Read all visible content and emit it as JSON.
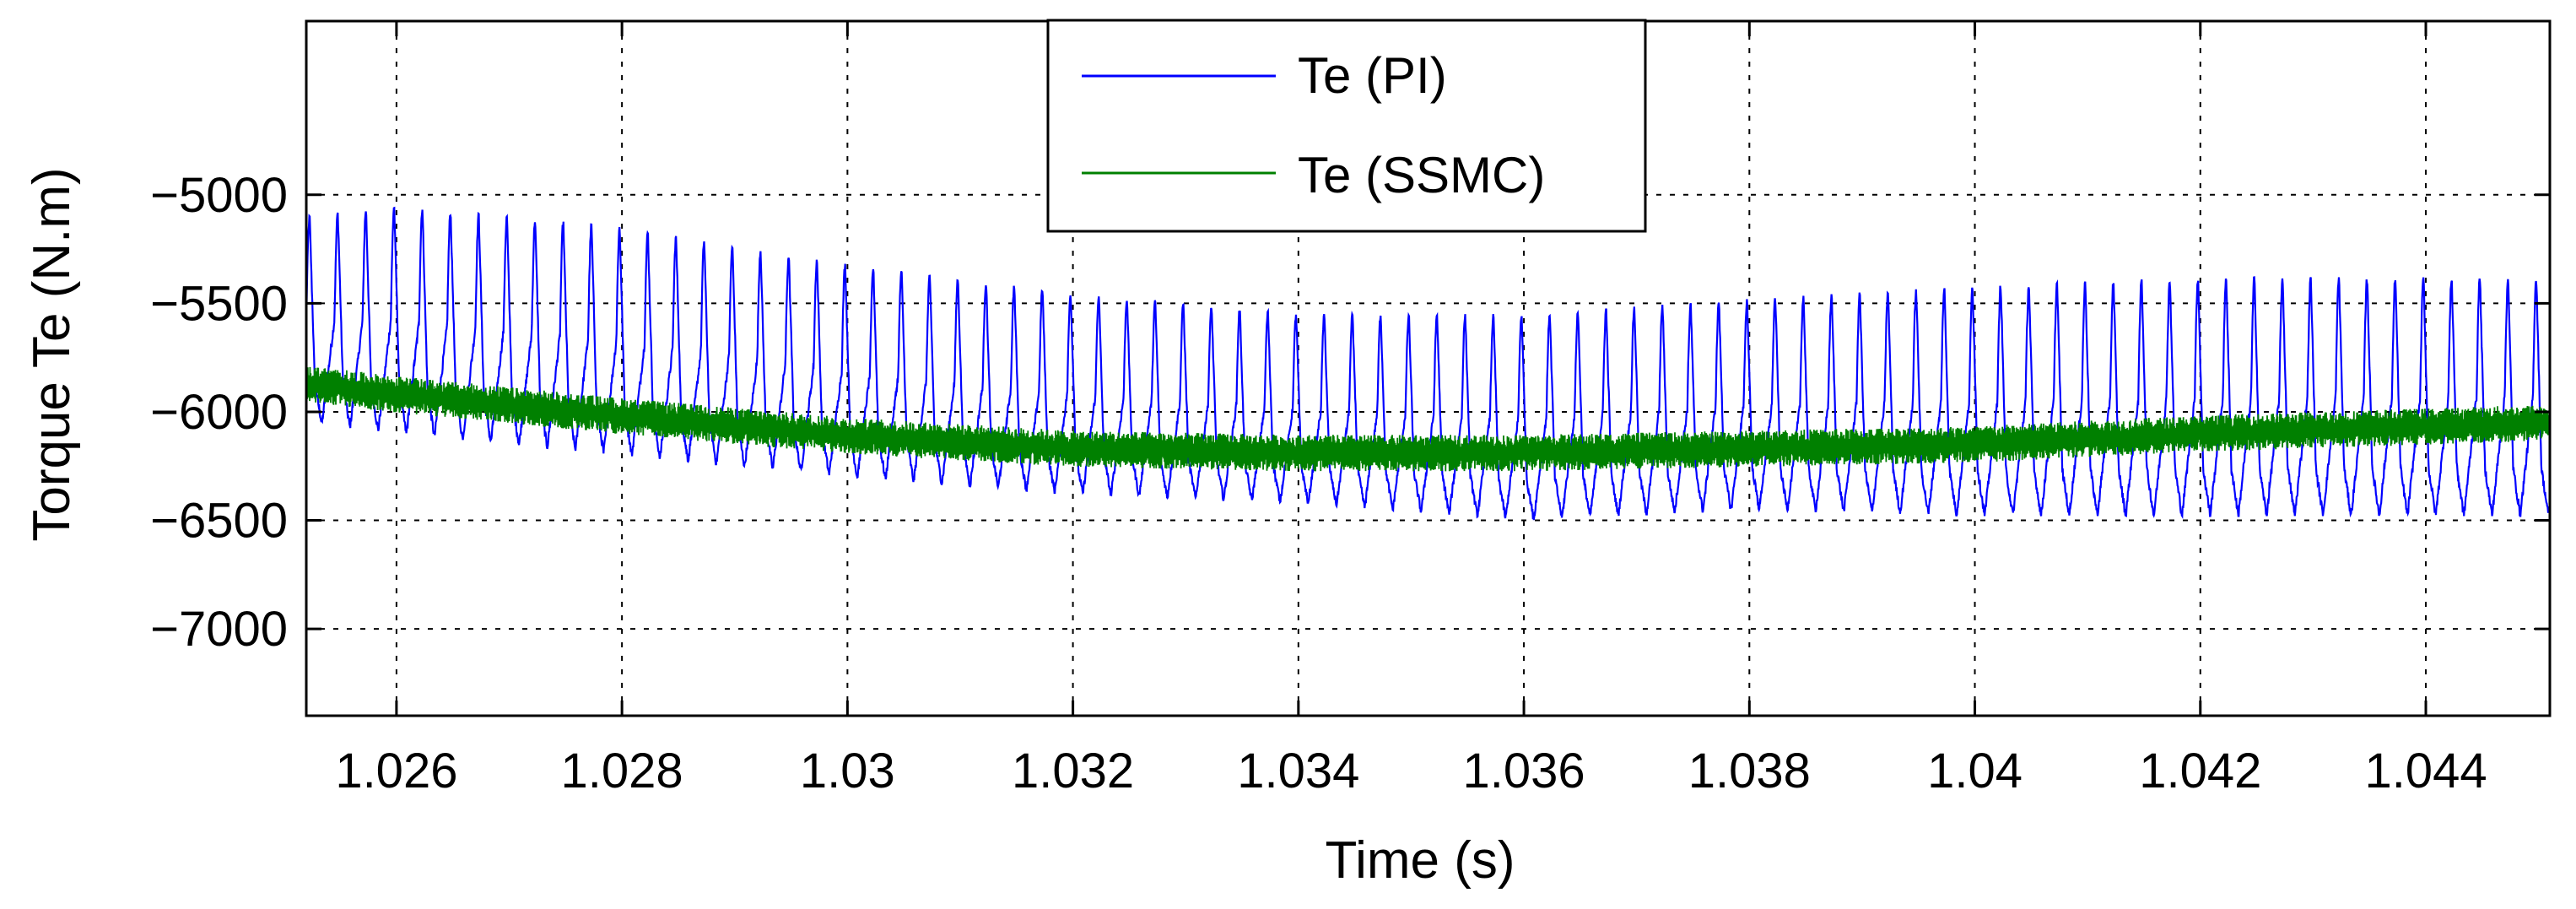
{
  "chart_data": {
    "type": "line",
    "title": "",
    "xlabel": "Time (s)",
    "ylabel": "Torque Te (N.m)",
    "xlim": [
      1.0252,
      1.0451
    ],
    "ylim": [
      -7400,
      -4200
    ],
    "grid": true,
    "legend_position": "top-center",
    "x_ticks": [
      1.026,
      1.028,
      1.03,
      1.032,
      1.034,
      1.036,
      1.038,
      1.04,
      1.042,
      1.044
    ],
    "x_tick_labels": [
      "1.026",
      "1.028",
      "1.03",
      "1.032",
      "1.034",
      "1.036",
      "1.038",
      "1.04",
      "1.042",
      "1.044"
    ],
    "y_ticks": [
      -5000,
      -5500,
      -6000,
      -6500,
      -7000
    ],
    "y_tick_labels": [
      "−5000",
      "−5500",
      "−6000",
      "−6500",
      "−7000"
    ],
    "series": [
      {
        "name": "Te (PI)",
        "color": "#0000ff",
        "description": "periodic ripple, period ~0.00025 s",
        "x": [
          1.0252,
          1.026,
          1.028,
          1.03,
          1.032,
          1.034,
          1.036,
          1.038,
          1.04,
          1.042,
          1.0451
        ],
        "upper": [
          -5100,
          -5050,
          -5150,
          -5320,
          -5450,
          -5550,
          -5550,
          -5480,
          -5420,
          -5380,
          -5380
        ],
        "lower": [
          -6050,
          -6100,
          -6200,
          -6300,
          -6380,
          -6420,
          -6500,
          -6450,
          -6480,
          -6480,
          -6480
        ]
      },
      {
        "name": "Te (SSMC)",
        "color": "#008000",
        "description": "high-frequency chatter around mean",
        "x": [
          1.0252,
          1.026,
          1.028,
          1.03,
          1.032,
          1.034,
          1.036,
          1.038,
          1.04,
          1.042,
          1.0451
        ],
        "values": [
          -5870,
          -5920,
          -6020,
          -6110,
          -6170,
          -6190,
          -6190,
          -6170,
          -6150,
          -6100,
          -6050
        ],
        "noise_amplitude": 70
      }
    ]
  }
}
